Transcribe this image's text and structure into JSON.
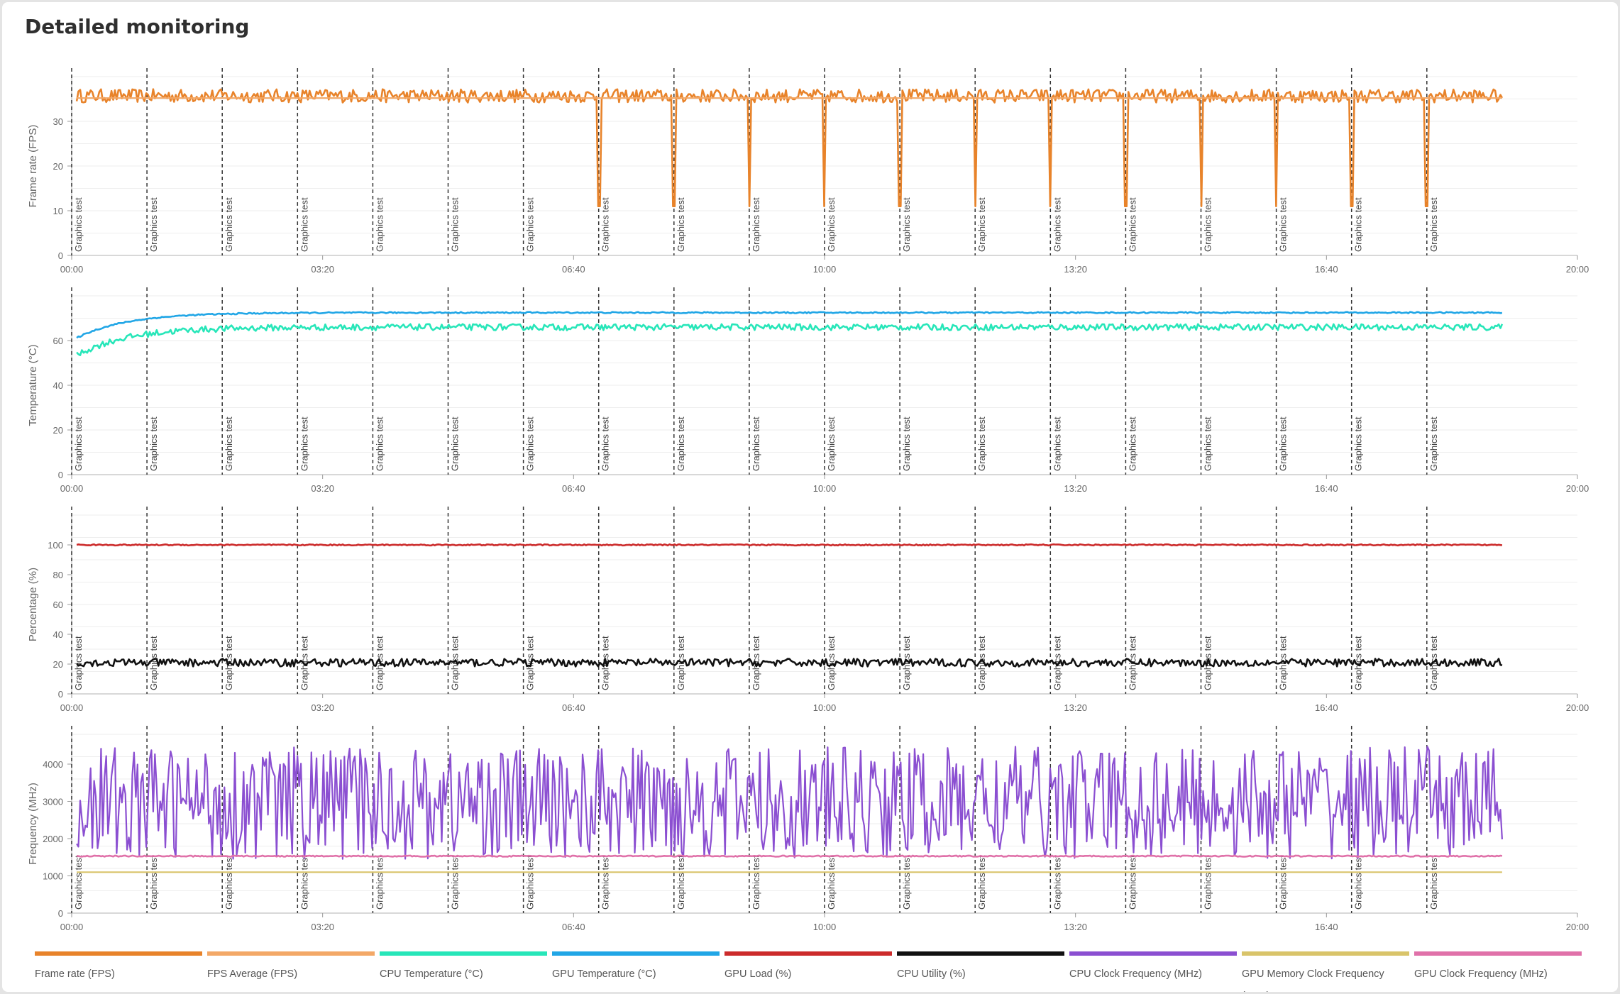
{
  "page": {
    "title": "Detailed monitoring"
  },
  "chart_data": [
    {
      "type": "line",
      "ylabel": "Frame rate (FPS)",
      "yticks": [
        0,
        10,
        20,
        30
      ],
      "ylim": [
        0,
        40
      ],
      "xlim": [
        "00:00",
        "20:00"
      ],
      "xticks": [
        "00:00",
        "03:20",
        "06:40",
        "10:00",
        "13:20",
        "16:40",
        "20:00"
      ],
      "grid": true,
      "annotations": {
        "label": "Graphics test",
        "times": [
          "00:00",
          "01:00",
          "02:00",
          "03:00",
          "04:00",
          "05:00",
          "06:00",
          "07:00",
          "08:00",
          "09:00",
          "10:00",
          "11:00",
          "12:00",
          "13:00",
          "14:00",
          "15:00",
          "16:00",
          "17:00",
          "18:00"
        ]
      },
      "series": [
        {
          "name": "Frame rate (FPS)",
          "color": "#e8832a",
          "approx": "fluctuates 33-38 FPS throughout; drops to about 11 FPS at the start of each Graphics test from 07:00 to 18:00",
          "base": 35.7,
          "noise": 1.5,
          "drops_to": 11
        },
        {
          "name": "FPS Average (FPS)",
          "color": "#f3a867",
          "approx": "about 35 FPS flat",
          "base": 35.2
        }
      ]
    },
    {
      "type": "line",
      "ylabel": "Temperature (°C)",
      "yticks": [
        0,
        20,
        40,
        60
      ],
      "ylim": [
        0,
        80
      ],
      "xlim": [
        "00:00",
        "20:00"
      ],
      "xticks": [
        "00:00",
        "03:20",
        "06:40",
        "10:00",
        "13:20",
        "16:40",
        "20:00"
      ],
      "grid": true,
      "annotations": {
        "label": "Graphics test",
        "times": [
          "00:00",
          "01:00",
          "02:00",
          "03:00",
          "04:00",
          "05:00",
          "06:00",
          "07:00",
          "08:00",
          "09:00",
          "10:00",
          "11:00",
          "12:00",
          "13:00",
          "14:00",
          "15:00",
          "16:00",
          "17:00",
          "18:00"
        ]
      },
      "series": [
        {
          "name": "CPU Temperature (°C)",
          "color": "#27e6b9",
          "approx": "rises from about 52 °C to about 66 °C by 01:00, then 64-68 °C",
          "start": 52,
          "base": 66,
          "noise": 1.4
        },
        {
          "name": "GPU Temperature (°C)",
          "color": "#21a6e6",
          "approx": "rises from about 60 °C to about 72 °C by 01:00, then 72-73 °C",
          "start": 60,
          "base": 72.5,
          "noise": 0.3
        }
      ]
    },
    {
      "type": "line",
      "ylabel": "Percentage (%)",
      "yticks": [
        0,
        20,
        40,
        60,
        80,
        100
      ],
      "ylim": [
        0,
        120
      ],
      "xlim": [
        "00:00",
        "20:00"
      ],
      "xticks": [
        "00:00",
        "03:20",
        "06:40",
        "10:00",
        "13:20",
        "16:40",
        "20:00"
      ],
      "grid": true,
      "annotations": {
        "label": "Graphics test",
        "times": [
          "00:00",
          "01:00",
          "02:00",
          "03:00",
          "04:00",
          "05:00",
          "06:00",
          "07:00",
          "08:00",
          "09:00",
          "10:00",
          "11:00",
          "12:00",
          "13:00",
          "14:00",
          "15:00",
          "16:00",
          "17:00",
          "18:00"
        ]
      },
      "series": [
        {
          "name": "GPU Load (%)",
          "color": "#cc2b2b",
          "approx": "about 100 % flat",
          "base": 100,
          "noise": 0.4
        },
        {
          "name": "CPU Utility (%)",
          "color": "#111111",
          "approx": "mostly 18-25 %, peaks near 30-36 % around 00:00-05:00, 12:00 and 13:00",
          "base": 21,
          "noise": 2.6
        }
      ]
    },
    {
      "type": "line",
      "ylabel": "Frequency (MHz)",
      "yticks": [
        0,
        1000,
        2000,
        3000,
        4000
      ],
      "ylim": [
        0,
        4800
      ],
      "xlim": [
        "00:00",
        "20:00"
      ],
      "xticks": [
        "00:00",
        "03:20",
        "06:40",
        "10:00",
        "13:20",
        "16:40",
        "20:00"
      ],
      "grid": true,
      "annotations": {
        "label": "Graphics test",
        "times": [
          "00:00",
          "01:00",
          "02:00",
          "03:00",
          "04:00",
          "05:00",
          "06:00",
          "07:00",
          "08:00",
          "09:00",
          "10:00",
          "11:00",
          "12:00",
          "13:00",
          "14:00",
          "15:00",
          "16:00",
          "17:00",
          "18:00"
        ]
      },
      "series": [
        {
          "name": "CPU Clock Frequency (MHz)",
          "color": "#8b4fd1",
          "approx": "oscillates rapidly between about 1500 and 4500 MHz",
          "min": 1450,
          "max": 4480
        },
        {
          "name": "GPU Memory Clock Frequency (MHz)",
          "color": "#d9c46a",
          "approx": "about 1100 MHz flat",
          "base": 1100
        },
        {
          "name": "GPU Clock Frequency (MHz)",
          "color": "#e071a9",
          "approx": "about 1500-1550 MHz",
          "base": 1530,
          "noise": 15
        }
      ]
    }
  ],
  "legend": [
    {
      "label": "Frame rate (FPS)",
      "color": "#e8832a"
    },
    {
      "label": "FPS Average (FPS)",
      "color": "#f3a867"
    },
    {
      "label": "CPU Temperature (°C)",
      "color": "#27e6b9"
    },
    {
      "label": "GPU Temperature (°C)",
      "color": "#21a6e6"
    },
    {
      "label": "GPU Load (%)",
      "color": "#cc2b2b"
    },
    {
      "label": "CPU Utility (%)",
      "color": "#111111"
    },
    {
      "label": "CPU Clock Frequency (MHz)",
      "color": "#8b4fd1"
    },
    {
      "label": "GPU Memory Clock Frequency (MHz)",
      "color": "#d9c46a"
    },
    {
      "label": "GPU Clock Frequency (MHz)",
      "color": "#e071a9"
    }
  ]
}
